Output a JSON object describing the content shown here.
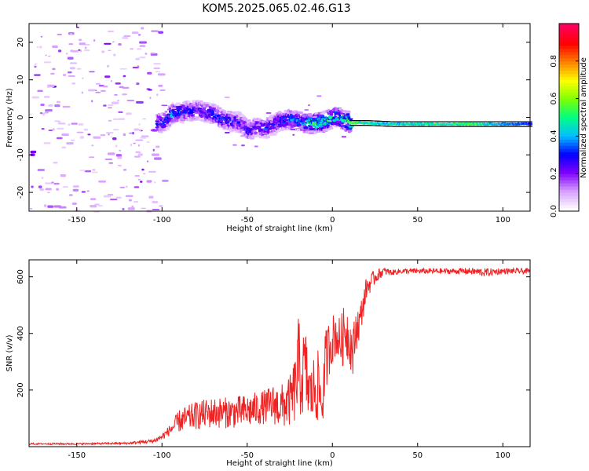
{
  "title": "KOM5.2025.065.02.46.G13",
  "chart_data": [
    {
      "type": "heatmap",
      "xlabel": "Height of straight line (km)",
      "ylabel": "Frequency (Hz)",
      "xlim": [
        -178,
        116
      ],
      "ylim": [
        -25,
        25
      ],
      "xticks": [
        -150,
        -100,
        -50,
        0,
        50,
        100
      ],
      "yticks": [
        -20,
        -10,
        0,
        10,
        20
      ],
      "colorbar": {
        "label": "Normalized spectral amplitude",
        "range": [
          0,
          1
        ],
        "ticks": [
          0.0,
          0.2,
          0.4,
          0.6,
          0.8
        ],
        "colormap": [
          "#ffffff",
          "#d7a0ff",
          "#8000ff",
          "#0000ff",
          "#00c0ff",
          "#00ff80",
          "#80ff00",
          "#ffff00",
          "#ff8000",
          "#ff0000",
          "#ff0060"
        ]
      },
      "ridge": [
        {
          "x": -100,
          "f": -1.5,
          "a": 0.3
        },
        {
          "x": -95,
          "f": 1.0,
          "a": 0.35
        },
        {
          "x": -88,
          "f": 1.5,
          "a": 0.3
        },
        {
          "x": -80,
          "f": 2.0,
          "a": 0.25
        },
        {
          "x": -72,
          "f": 1.0,
          "a": 0.3
        },
        {
          "x": -65,
          "f": -0.5,
          "a": 0.3
        },
        {
          "x": -55,
          "f": -1.5,
          "a": 0.25
        },
        {
          "x": -50,
          "f": -3.5,
          "a": 0.3
        },
        {
          "x": -45,
          "f": -2.5,
          "a": 0.25
        },
        {
          "x": -40,
          "f": -3.0,
          "a": 0.3
        },
        {
          "x": -32,
          "f": -1.0,
          "a": 0.3
        },
        {
          "x": -25,
          "f": -0.5,
          "a": 0.35
        },
        {
          "x": -18,
          "f": -1.5,
          "a": 0.35
        },
        {
          "x": -10,
          "f": -1.5,
          "a": 0.55
        },
        {
          "x": -5,
          "f": -1.0,
          "a": 0.5
        },
        {
          "x": 0,
          "f": 0.0,
          "a": 0.45
        },
        {
          "x": 5,
          "f": -0.5,
          "a": 0.45
        },
        {
          "x": 10,
          "f": -1.5,
          "a": 0.55
        },
        {
          "x": 20,
          "f": -1.5,
          "a": 0.45
        },
        {
          "x": 35,
          "f": -1.8,
          "a": 0.45
        },
        {
          "x": 50,
          "f": -1.8,
          "a": 0.45
        },
        {
          "x": 60,
          "f": -1.8,
          "a": 0.5
        },
        {
          "x": 70,
          "f": -1.8,
          "a": 0.5
        },
        {
          "x": 80,
          "f": -1.8,
          "a": 0.55
        },
        {
          "x": 90,
          "f": -1.8,
          "a": 0.45
        },
        {
          "x": 100,
          "f": -1.8,
          "a": 0.4
        },
        {
          "x": 110,
          "f": -1.8,
          "a": 0.35
        },
        {
          "x": 116,
          "f": -1.8,
          "a": 0.3
        }
      ]
    },
    {
      "type": "line",
      "xlabel": "Height of straight line (km)",
      "ylabel": "SNR (v/v)",
      "xlim": [
        -178,
        116
      ],
      "ylim": [
        0,
        660
      ],
      "xticks": [
        -150,
        -100,
        -50,
        0,
        50,
        100
      ],
      "yticks": [
        200,
        400,
        600
      ],
      "series": [
        {
          "color": "#ee2222",
          "x": [
            -178,
            -150,
            -120,
            -105,
            -100,
            -95,
            -90,
            -80,
            -70,
            -60,
            -50,
            -40,
            -35,
            -30,
            -25,
            -22,
            -20,
            -18,
            -16,
            -14,
            -12,
            -10,
            -8,
            -6,
            -4,
            -2,
            0,
            2,
            4,
            6,
            8,
            10,
            12,
            14,
            16,
            18,
            20,
            25,
            30,
            35,
            40,
            50,
            60,
            70,
            80,
            90,
            100,
            110,
            116
          ],
          "y": [
            10,
            10,
            12,
            20,
            35,
            60,
            90,
            110,
            120,
            120,
            125,
            140,
            150,
            140,
            160,
            200,
            280,
            240,
            280,
            200,
            180,
            220,
            210,
            140,
            300,
            350,
            380,
            400,
            370,
            380,
            420,
            380,
            330,
            420,
            440,
            500,
            560,
            600,
            620,
            615,
            620,
            620,
            620,
            620,
            620,
            615,
            620,
            620,
            620
          ],
          "noise": [
            3,
            3,
            4,
            8,
            12,
            20,
            40,
            50,
            55,
            55,
            60,
            60,
            70,
            80,
            90,
            120,
            180,
            140,
            160,
            120,
            100,
            150,
            120,
            80,
            120,
            100,
            90,
            80,
            90,
            100,
            110,
            90,
            90,
            80,
            60,
            50,
            40,
            25,
            15,
            10,
            10,
            10,
            10,
            10,
            12,
            15,
            10,
            10,
            10
          ]
        }
      ]
    }
  ]
}
